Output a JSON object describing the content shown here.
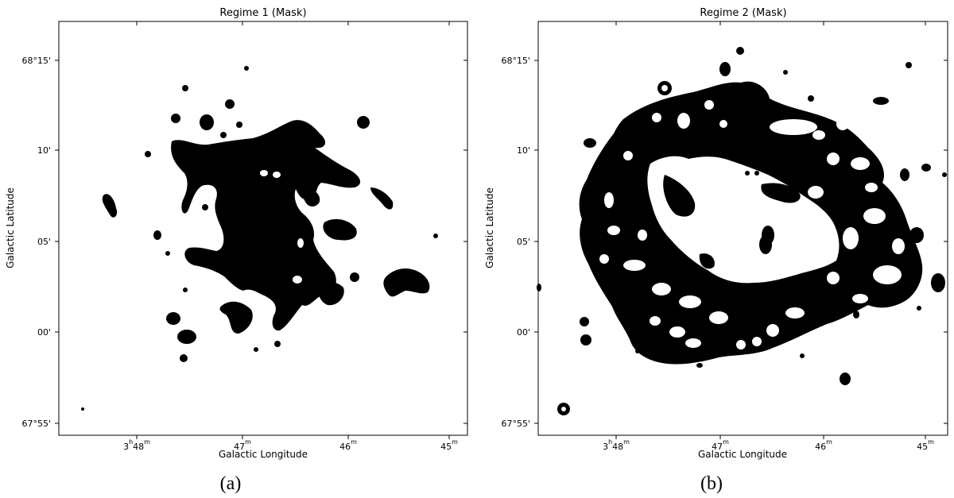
{
  "panels": [
    {
      "id": "a",
      "title": "Regime 1 (Mask)",
      "xlabel": "Galactic Longitude",
      "ylabel": "Galactic Latitude",
      "caption": "(a)",
      "x_ticks": [
        {
          "h": "3",
          "m": "48"
        },
        {
          "h": "",
          "m": "47"
        },
        {
          "h": "",
          "m": "46"
        },
        {
          "h": "",
          "m": "45"
        }
      ],
      "y_ticks": [
        "68°15'",
        "10'",
        "05'",
        "00'",
        "67°55'"
      ]
    },
    {
      "id": "b",
      "title": "Regime 2 (Mask)",
      "xlabel": "Galactic Longitude",
      "ylabel": "Galactic Latitude",
      "caption": "(b)",
      "x_ticks": [
        {
          "h": "3",
          "m": "48"
        },
        {
          "h": "",
          "m": "47"
        },
        {
          "h": "",
          "m": "46"
        },
        {
          "h": "",
          "m": "45"
        }
      ],
      "y_ticks": [
        "68°15'",
        "10'",
        "05'",
        "00'",
        "67°55'"
      ]
    }
  ],
  "colors": {
    "mask": "#000000",
    "background": "#ffffff"
  }
}
